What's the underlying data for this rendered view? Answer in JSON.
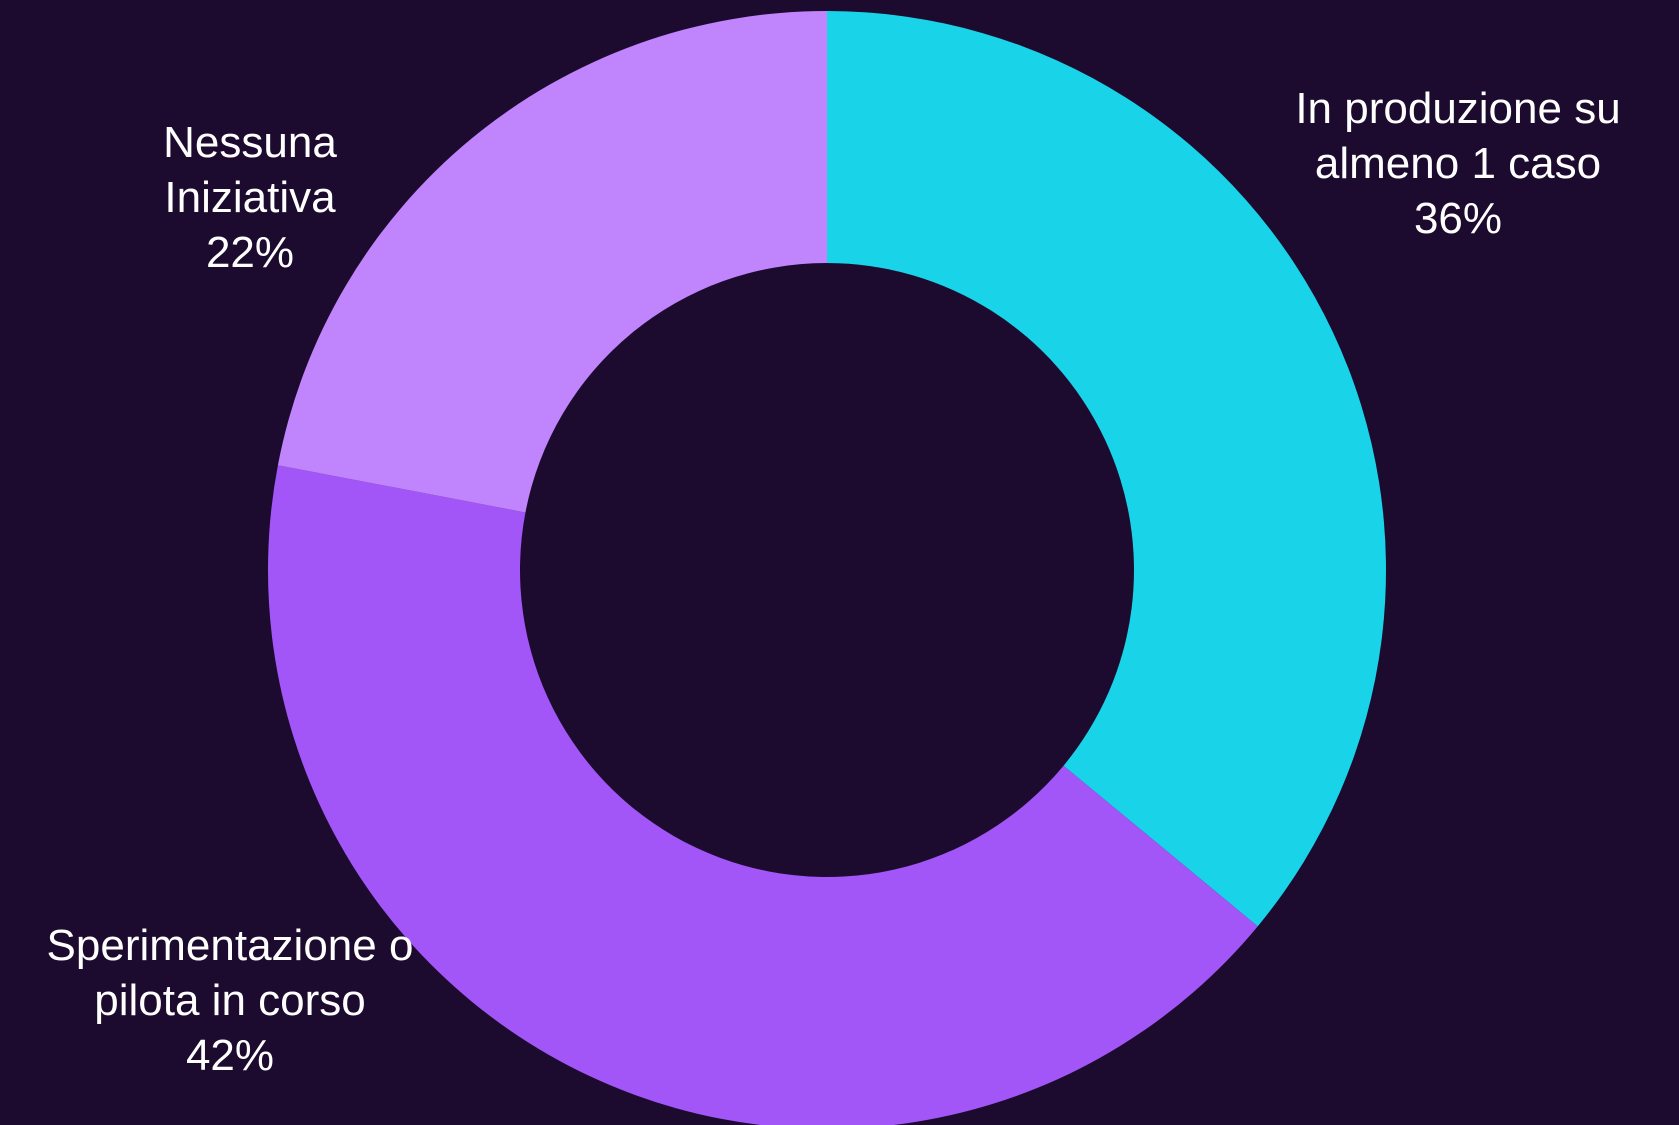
{
  "chart_data": {
    "type": "pie",
    "donut": true,
    "background": "#1c0b2f",
    "slices": [
      {
        "label_lines": [
          "In produzione su",
          "almeno 1 caso"
        ],
        "value": 36,
        "value_label": "36%",
        "color": "#19d3e8"
      },
      {
        "label_lines": [
          "Sperimentazione o",
          "pilota in corso"
        ],
        "value": 42,
        "value_label": "42%",
        "color": "#a356f7"
      },
      {
        "label_lines": [
          "Nessuna",
          "Iniziativa"
        ],
        "value": 22,
        "value_label": "22%",
        "color": "#c084fc"
      }
    ]
  }
}
